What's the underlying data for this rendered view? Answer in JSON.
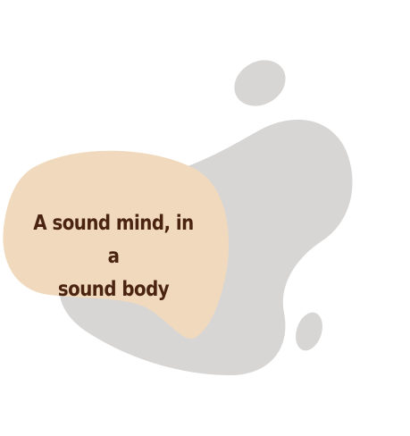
{
  "quote": {
    "line_1": "A sound mind, in a",
    "line_2": "sound body"
  },
  "colors": {
    "background": "#ffffff",
    "grey_blob": "#d8d6d5",
    "peach_blob": "#f0d9bd",
    "text": "#4a2410"
  }
}
